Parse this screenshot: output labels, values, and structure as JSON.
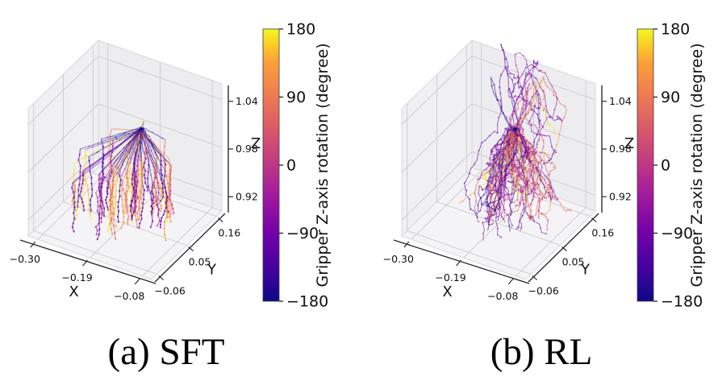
{
  "figure": {
    "background": "#ffffff",
    "type": "side-by-side 3d trajectory comparison"
  },
  "colormap": {
    "name": "plasma",
    "stops": [
      [
        0.0,
        "#0d0887"
      ],
      [
        0.125,
        "#46039f"
      ],
      [
        0.25,
        "#7201a8"
      ],
      [
        0.375,
        "#9c179e"
      ],
      [
        0.5,
        "#bd3786"
      ],
      [
        0.625,
        "#d8576b"
      ],
      [
        0.75,
        "#ed7953"
      ],
      [
        0.875,
        "#fb9f3a"
      ],
      [
        0.9375,
        "#fdc926"
      ],
      [
        1.0,
        "#f0f921"
      ]
    ]
  },
  "chart_data": [
    {
      "id": "sft",
      "type": "3d-trajectories",
      "caption": "(a) SFT",
      "style": "straight_converging",
      "n_trajectories": 58,
      "seed": 11,
      "apex_uvw": [
        0.52,
        0.7,
        0.645
      ],
      "axes": {
        "x": {
          "label": "X",
          "ticks": [
            -0.3,
            -0.19,
            -0.08
          ],
          "tick_labels": [
            "−0.30",
            "−0.19",
            "−0.08"
          ],
          "range": [
            -0.32,
            -0.06
          ]
        },
        "y": {
          "label": "Y",
          "ticks": [
            -0.06,
            0.05,
            0.16
          ],
          "tick_labels": [
            "−0.06",
            "0.05",
            "0.16"
          ],
          "range": [
            -0.08,
            0.18
          ]
        },
        "z": {
          "label": "Z",
          "ticks": [
            0.92,
            0.98,
            1.04
          ],
          "tick_labels": [
            "0.92",
            "0.98",
            "1.04"
          ],
          "range": [
            0.9,
            1.06
          ]
        }
      },
      "colorbar": {
        "label": "Gripper Z-axis rotation (degree)",
        "ticks": [
          180,
          90,
          0,
          -90,
          -180
        ],
        "tick_labels": [
          "180",
          "90",
          "0",
          "−90",
          "−180"
        ],
        "range": [
          -180,
          180
        ]
      }
    },
    {
      "id": "rl",
      "type": "3d-trajectories",
      "caption": "(b) RL",
      "style": "wandering",
      "n_trajectories": 80,
      "seed": 29,
      "apex_uvw": [
        0.52,
        0.7,
        0.645
      ],
      "axes": {
        "x": {
          "label": "X",
          "ticks": [
            -0.3,
            -0.19,
            -0.08
          ],
          "tick_labels": [
            "−0.30",
            "−0.19",
            "−0.08"
          ],
          "range": [
            -0.32,
            -0.06
          ]
        },
        "y": {
          "label": "Y",
          "ticks": [
            -0.06,
            0.05,
            0.16
          ],
          "tick_labels": [
            "−0.06",
            "0.05",
            "0.16"
          ],
          "range": [
            -0.08,
            0.18
          ]
        },
        "z": {
          "label": "Z",
          "ticks": [
            0.92,
            0.98,
            1.04
          ],
          "tick_labels": [
            "0.92",
            "0.98",
            "1.04"
          ],
          "range": [
            0.9,
            1.06
          ]
        }
      },
      "colorbar": {
        "label": "Gripper Z-axis rotation (degree)",
        "ticks": [
          180,
          90,
          0,
          -90,
          -180
        ],
        "tick_labels": [
          "180",
          "90",
          "0",
          "−90",
          "−180"
        ],
        "range": [
          -180,
          180
        ]
      }
    }
  ]
}
